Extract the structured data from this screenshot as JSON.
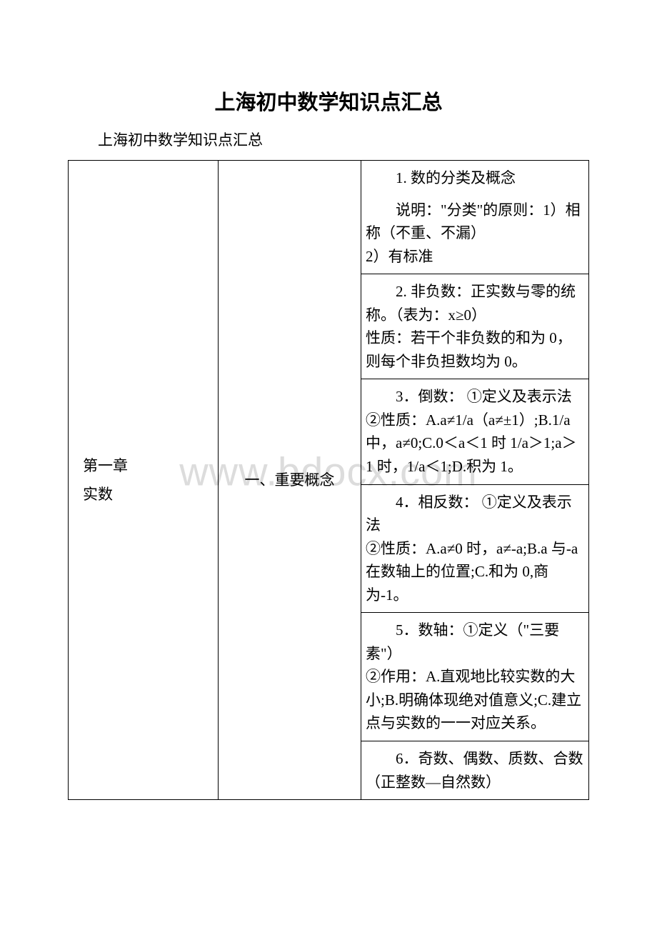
{
  "title": "上海初中数学知识点汇总",
  "subtitle": "上海初中数学知识点汇总",
  "watermark": "www.bdocx.com",
  "chapter": {
    "line1": "第一章",
    "line2": "实数"
  },
  "section": "一、重要概念",
  "points": [
    {
      "head": "1. 数的分类及概念",
      "body": "说明：\"分类\"的原则：1）相称（不重、不漏）\n2）有标准",
      "headSeparate": true
    },
    {
      "head": "2. 非负数：正实数与零的统称。（表为：x≥0）",
      "body": "性质：若干个非负数的和为 0，则每个非负担数均为 0。",
      "headSeparate": false
    },
    {
      "head": "3．倒数： ①定义及表示法",
      "body": "②性质：A.a≠1/a（a≠±1）;B.1/a 中，a≠0;C.0＜a＜1 时 1/a＞1;a＞1 时，1/a＜1;D.积为 1。",
      "headSeparate": false
    },
    {
      "head": "4．相反数： ①定义及表示法",
      "body": "②性质：A.a≠0 时，a≠-a;B.a 与-a 在数轴上的位置;C.和为 0,商为-1。",
      "headSeparate": false
    },
    {
      "head": "5．数轴：①定义（\"三要素\"）",
      "body": "②作用：A.直观地比较实数的大小;B.明确体现绝对值意义;C.建立点与实数的一一对应关系。",
      "headSeparate": false
    },
    {
      "head": "6．奇数、偶数、质数、合数（正整数—自然数）",
      "body": "",
      "headSeparate": false
    }
  ]
}
